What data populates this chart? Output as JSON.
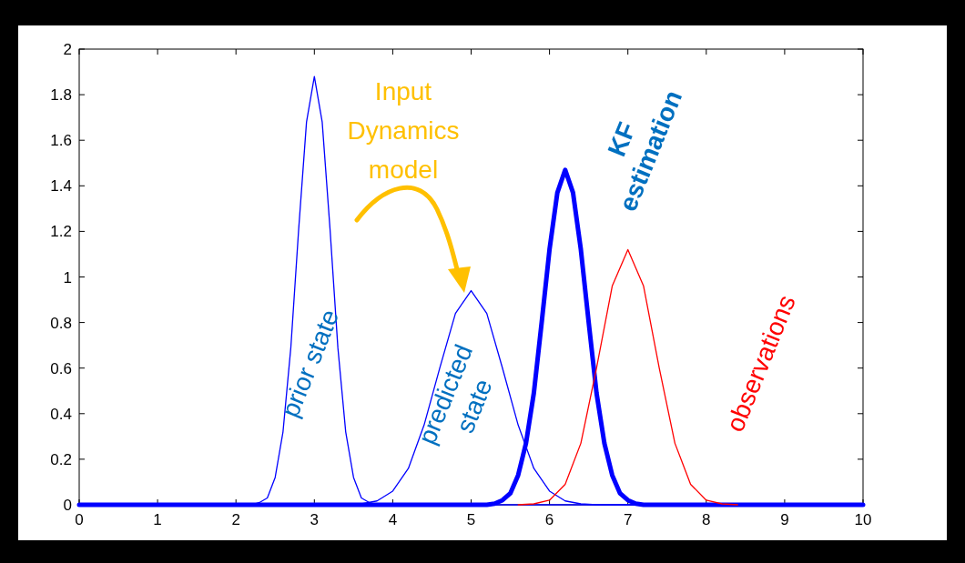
{
  "chart_data": {
    "type": "line",
    "xlim": [
      0,
      10
    ],
    "ylim": [
      0,
      2
    ],
    "xticks": [
      0,
      1,
      2,
      3,
      4,
      5,
      6,
      7,
      8,
      9,
      10
    ],
    "yticks": [
      0,
      0.2,
      0.4,
      0.6,
      0.8,
      1,
      1.2,
      1.4,
      1.6,
      1.8,
      2
    ],
    "grid": false,
    "marker": "none",
    "line_style": "solid",
    "series": [
      {
        "name": "prior state",
        "color": "#0000ff",
        "x": [
          0,
          2.2,
          2.3,
          2.4,
          2.5,
          2.6,
          2.7,
          2.8,
          2.9,
          3,
          3.1,
          3.2,
          3.3,
          3.4,
          3.5,
          3.6,
          3.7,
          3.8,
          10
        ],
        "values": [
          0,
          0,
          0.01,
          0.03,
          0.12,
          0.32,
          0.69,
          1.21,
          1.68,
          1.88,
          1.68,
          1.21,
          0.69,
          0.32,
          0.12,
          0.03,
          0.01,
          0,
          0
        ]
      },
      {
        "name": "predicted state",
        "color": "#0000ff",
        "x": [
          0,
          3.4,
          3.6,
          3.8,
          4,
          4.2,
          4.4,
          4.6,
          4.8,
          5,
          5.2,
          5.4,
          5.6,
          5.8,
          6,
          6.2,
          6.4,
          6.6,
          10
        ],
        "values": [
          0,
          0,
          0.004,
          0.017,
          0.06,
          0.16,
          0.35,
          0.6,
          0.84,
          0.94,
          0.84,
          0.6,
          0.35,
          0.16,
          0.06,
          0.017,
          0.004,
          0,
          0
        ]
      },
      {
        "name": "KF estimation",
        "color": "#0000ff",
        "x": [
          0,
          5.2,
          5.3,
          5.4,
          5.5,
          5.6,
          5.7,
          5.8,
          5.9,
          6,
          6.1,
          6.2,
          6.3,
          6.4,
          6.5,
          6.6,
          6.7,
          6.8,
          6.9,
          7,
          7.1,
          7.2,
          10
        ],
        "values": [
          0,
          0,
          0.005,
          0.02,
          0.05,
          0.13,
          0.27,
          0.49,
          0.8,
          1.12,
          1.37,
          1.47,
          1.37,
          1.12,
          0.8,
          0.49,
          0.27,
          0.13,
          0.05,
          0.02,
          0.005,
          0,
          0
        ]
      },
      {
        "name": "observations",
        "color": "#ff0000",
        "x": [
          5.6,
          5.8,
          6,
          6.2,
          6.4,
          6.6,
          6.8,
          7,
          7.2,
          7.4,
          7.6,
          7.8,
          8,
          8.2,
          8.4
        ],
        "values": [
          0,
          0.004,
          0.02,
          0.09,
          0.27,
          0.6,
          0.96,
          1.12,
          0.96,
          0.6,
          0.27,
          0.09,
          0.02,
          0.004,
          0
        ]
      }
    ],
    "annotations": [
      "Input Dynamics model"
    ]
  }
}
